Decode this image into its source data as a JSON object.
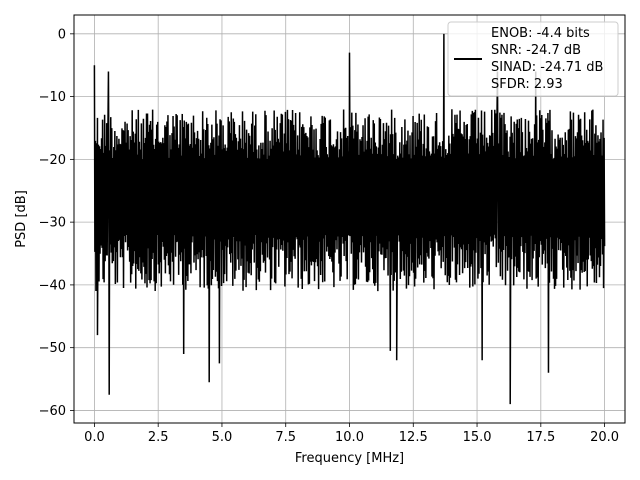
{
  "chart_data": {
    "type": "line",
    "xlabel": "Frequency [MHz]",
    "ylabel": "PSD [dB]",
    "xlim": [
      -0.8,
      20.8
    ],
    "ylim": [
      -62,
      3
    ],
    "xticks": [
      0,
      2.5,
      5,
      7.5,
      10,
      12.5,
      15,
      17.5,
      20
    ],
    "xtick_labels": [
      "0.0",
      "2.5",
      "5.0",
      "7.5",
      "10.0",
      "12.5",
      "15.0",
      "17.5",
      "20.0"
    ],
    "yticks": [
      0,
      -10,
      -20,
      -30,
      -40,
      -50,
      -60
    ],
    "ytick_labels": [
      "0",
      "−10",
      "−20",
      "−30",
      "−40",
      "−50",
      "−60"
    ],
    "grid": true,
    "legend_position": "top-right",
    "line_color": "#000000",
    "legend": {
      "lines": [
        "ENOB: -4.4 bits",
        "SNR: -24.7 dB",
        "SINAD: -24.71 dB",
        "SFDR: 2.93"
      ]
    },
    "series": [
      {
        "x_start": 0,
        "x_end": 20,
        "points": 1000,
        "typical_upper": -12,
        "typical_lower": -35,
        "peaks": [
          {
            "x": 0.0,
            "y": -5
          },
          {
            "x": 0.55,
            "y": -6
          },
          {
            "x": 10.0,
            "y": -3
          },
          {
            "x": 13.7,
            "y": 0
          },
          {
            "x": 15.8,
            "y": -6
          },
          {
            "x": 17.3,
            "y": -6
          }
        ],
        "troughs": [
          {
            "x": 0.12,
            "y": -48
          },
          {
            "x": 0.58,
            "y": -57.5
          },
          {
            "x": 3.5,
            "y": -51
          },
          {
            "x": 4.5,
            "y": -55.5
          },
          {
            "x": 4.9,
            "y": -52.5
          },
          {
            "x": 11.6,
            "y": -50.5
          },
          {
            "x": 11.85,
            "y": -52
          },
          {
            "x": 15.2,
            "y": -52
          },
          {
            "x": 16.3,
            "y": -59
          },
          {
            "x": 17.8,
            "y": -54
          }
        ]
      }
    ]
  }
}
